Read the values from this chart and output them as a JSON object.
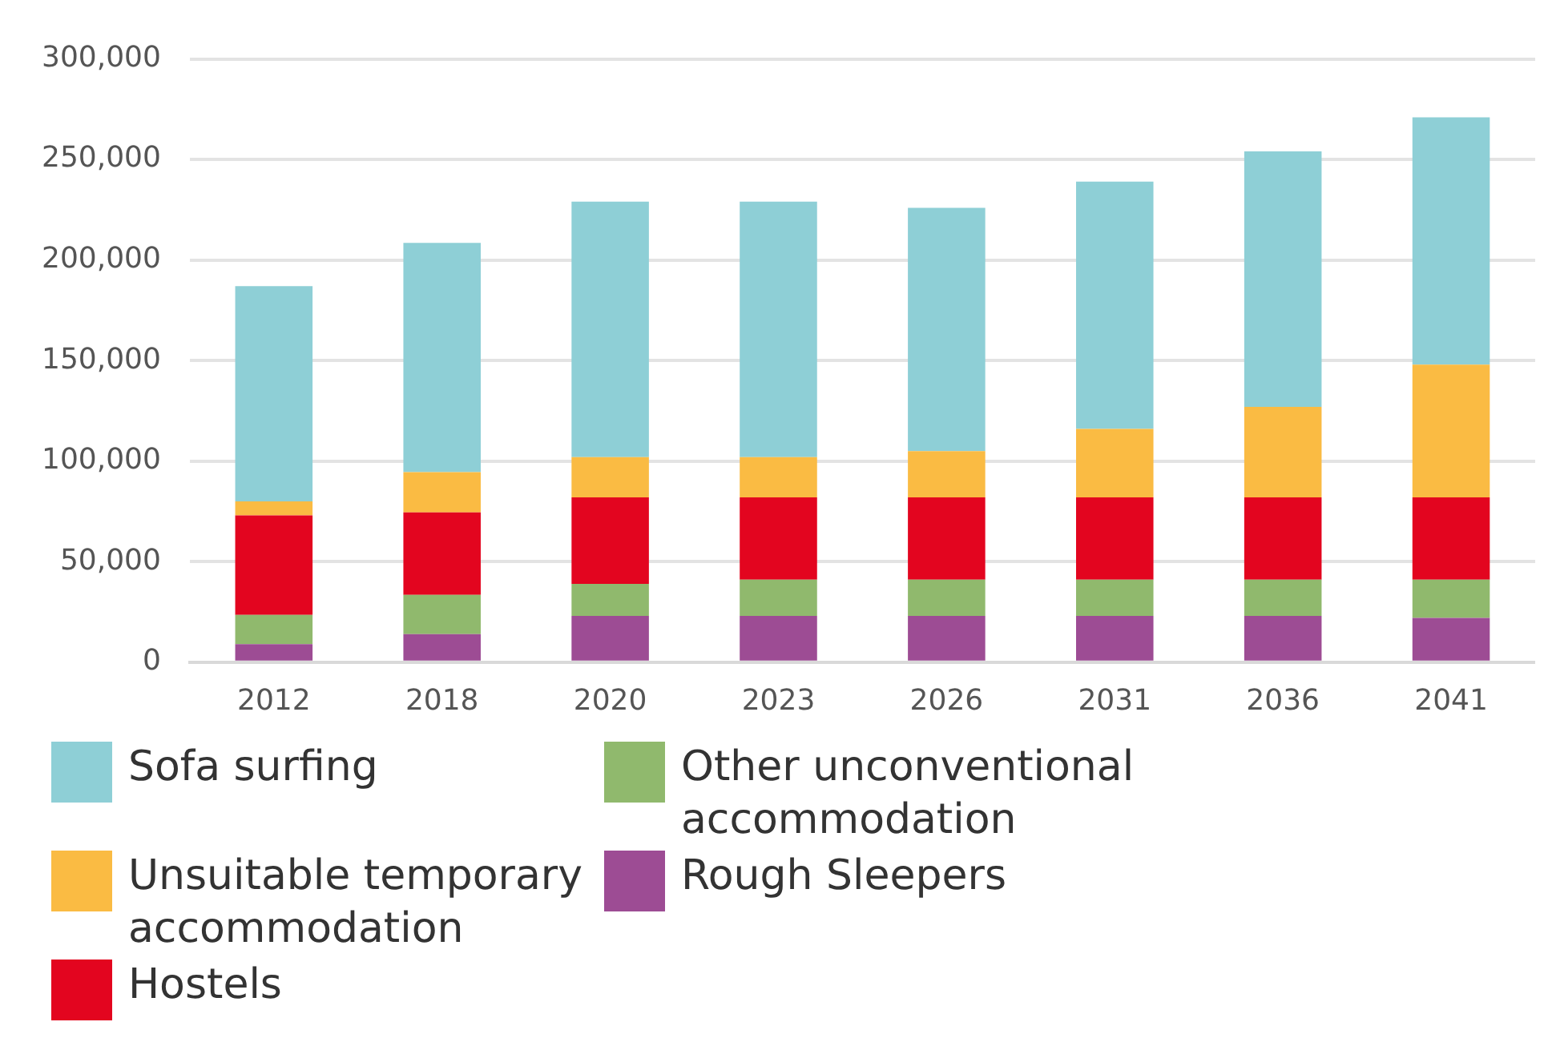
{
  "chart_data": {
    "type": "bar",
    "stacked": true,
    "categories": [
      "2012",
      "2018",
      "2020",
      "2023",
      "2026",
      "2031",
      "2036",
      "2041"
    ],
    "series": [
      {
        "name": "Rough Sleepers",
        "color": "#9d4c94",
        "values": [
          9000,
          14000,
          23000,
          23000,
          23000,
          23000,
          23000,
          22000
        ]
      },
      {
        "name": "Other unconventional accommodation",
        "color": "#90b96d",
        "values": [
          14500,
          19500,
          16000,
          18000,
          18000,
          18000,
          18000,
          19000
        ]
      },
      {
        "name": "Hostels",
        "color": "#e3051f",
        "values": [
          49500,
          41000,
          43000,
          41000,
          41000,
          41000,
          41000,
          41000
        ]
      },
      {
        "name": "Unsuitable temporary accommodation",
        "color": "#fabb43",
        "values": [
          7000,
          20000,
          20000,
          20000,
          23000,
          34000,
          45000,
          66000
        ]
      },
      {
        "name": "Sofa surfing",
        "color": "#8ecfd6",
        "values": [
          107000,
          114000,
          127000,
          127000,
          121000,
          123000,
          127000,
          123000
        ]
      }
    ],
    "ylim": [
      0,
      300000
    ],
    "yticks": [
      {
        "value": 0,
        "label": "0"
      },
      {
        "value": 50000,
        "label": "50,000"
      },
      {
        "value": 100000,
        "label": "100,000"
      },
      {
        "value": 150000,
        "label": "150,000"
      },
      {
        "value": 200000,
        "label": "200,000"
      },
      {
        "value": 250000,
        "label": "250,000"
      },
      {
        "value": 300000,
        "label": "300,000"
      }
    ],
    "grid": "y",
    "legend": "bottom left"
  }
}
